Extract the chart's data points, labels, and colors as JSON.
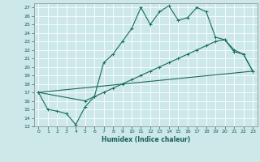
{
  "title": "",
  "xlabel": "Humidex (Indice chaleur)",
  "bg_color": "#cce8e8",
  "line_color": "#1a6b60",
  "xlim": [
    -0.5,
    23.5
  ],
  "ylim": [
    13,
    27.5
  ],
  "yticks": [
    13,
    14,
    15,
    16,
    17,
    18,
    19,
    20,
    21,
    22,
    23,
    24,
    25,
    26,
    27
  ],
  "xticks": [
    0,
    1,
    2,
    3,
    4,
    5,
    6,
    7,
    8,
    9,
    10,
    11,
    12,
    13,
    14,
    15,
    16,
    17,
    18,
    19,
    20,
    21,
    22,
    23
  ],
  "series1_x": [
    0,
    1,
    2,
    3,
    4,
    5,
    6,
    7,
    8,
    9,
    10,
    11,
    12,
    13,
    14,
    15,
    16,
    17,
    18,
    19,
    20,
    21,
    22,
    23
  ],
  "series1_y": [
    17.0,
    15.0,
    14.8,
    14.5,
    13.2,
    15.3,
    16.5,
    20.5,
    21.5,
    23.0,
    24.5,
    27.0,
    25.0,
    26.5,
    27.2,
    25.5,
    25.8,
    27.0,
    26.5,
    23.5,
    23.2,
    22.0,
    21.5,
    19.5
  ],
  "series2_x": [
    0,
    5,
    6,
    7,
    8,
    9,
    10,
    11,
    12,
    13,
    14,
    15,
    16,
    17,
    18,
    19,
    20,
    21,
    22,
    23
  ],
  "series2_y": [
    17.0,
    16.0,
    16.5,
    17.0,
    17.5,
    18.0,
    18.5,
    19.0,
    19.5,
    20.0,
    20.5,
    21.0,
    21.5,
    22.0,
    22.5,
    23.0,
    23.2,
    21.8,
    21.5,
    19.5
  ],
  "series3_x": [
    0,
    23
  ],
  "series3_y": [
    17.0,
    19.5
  ]
}
